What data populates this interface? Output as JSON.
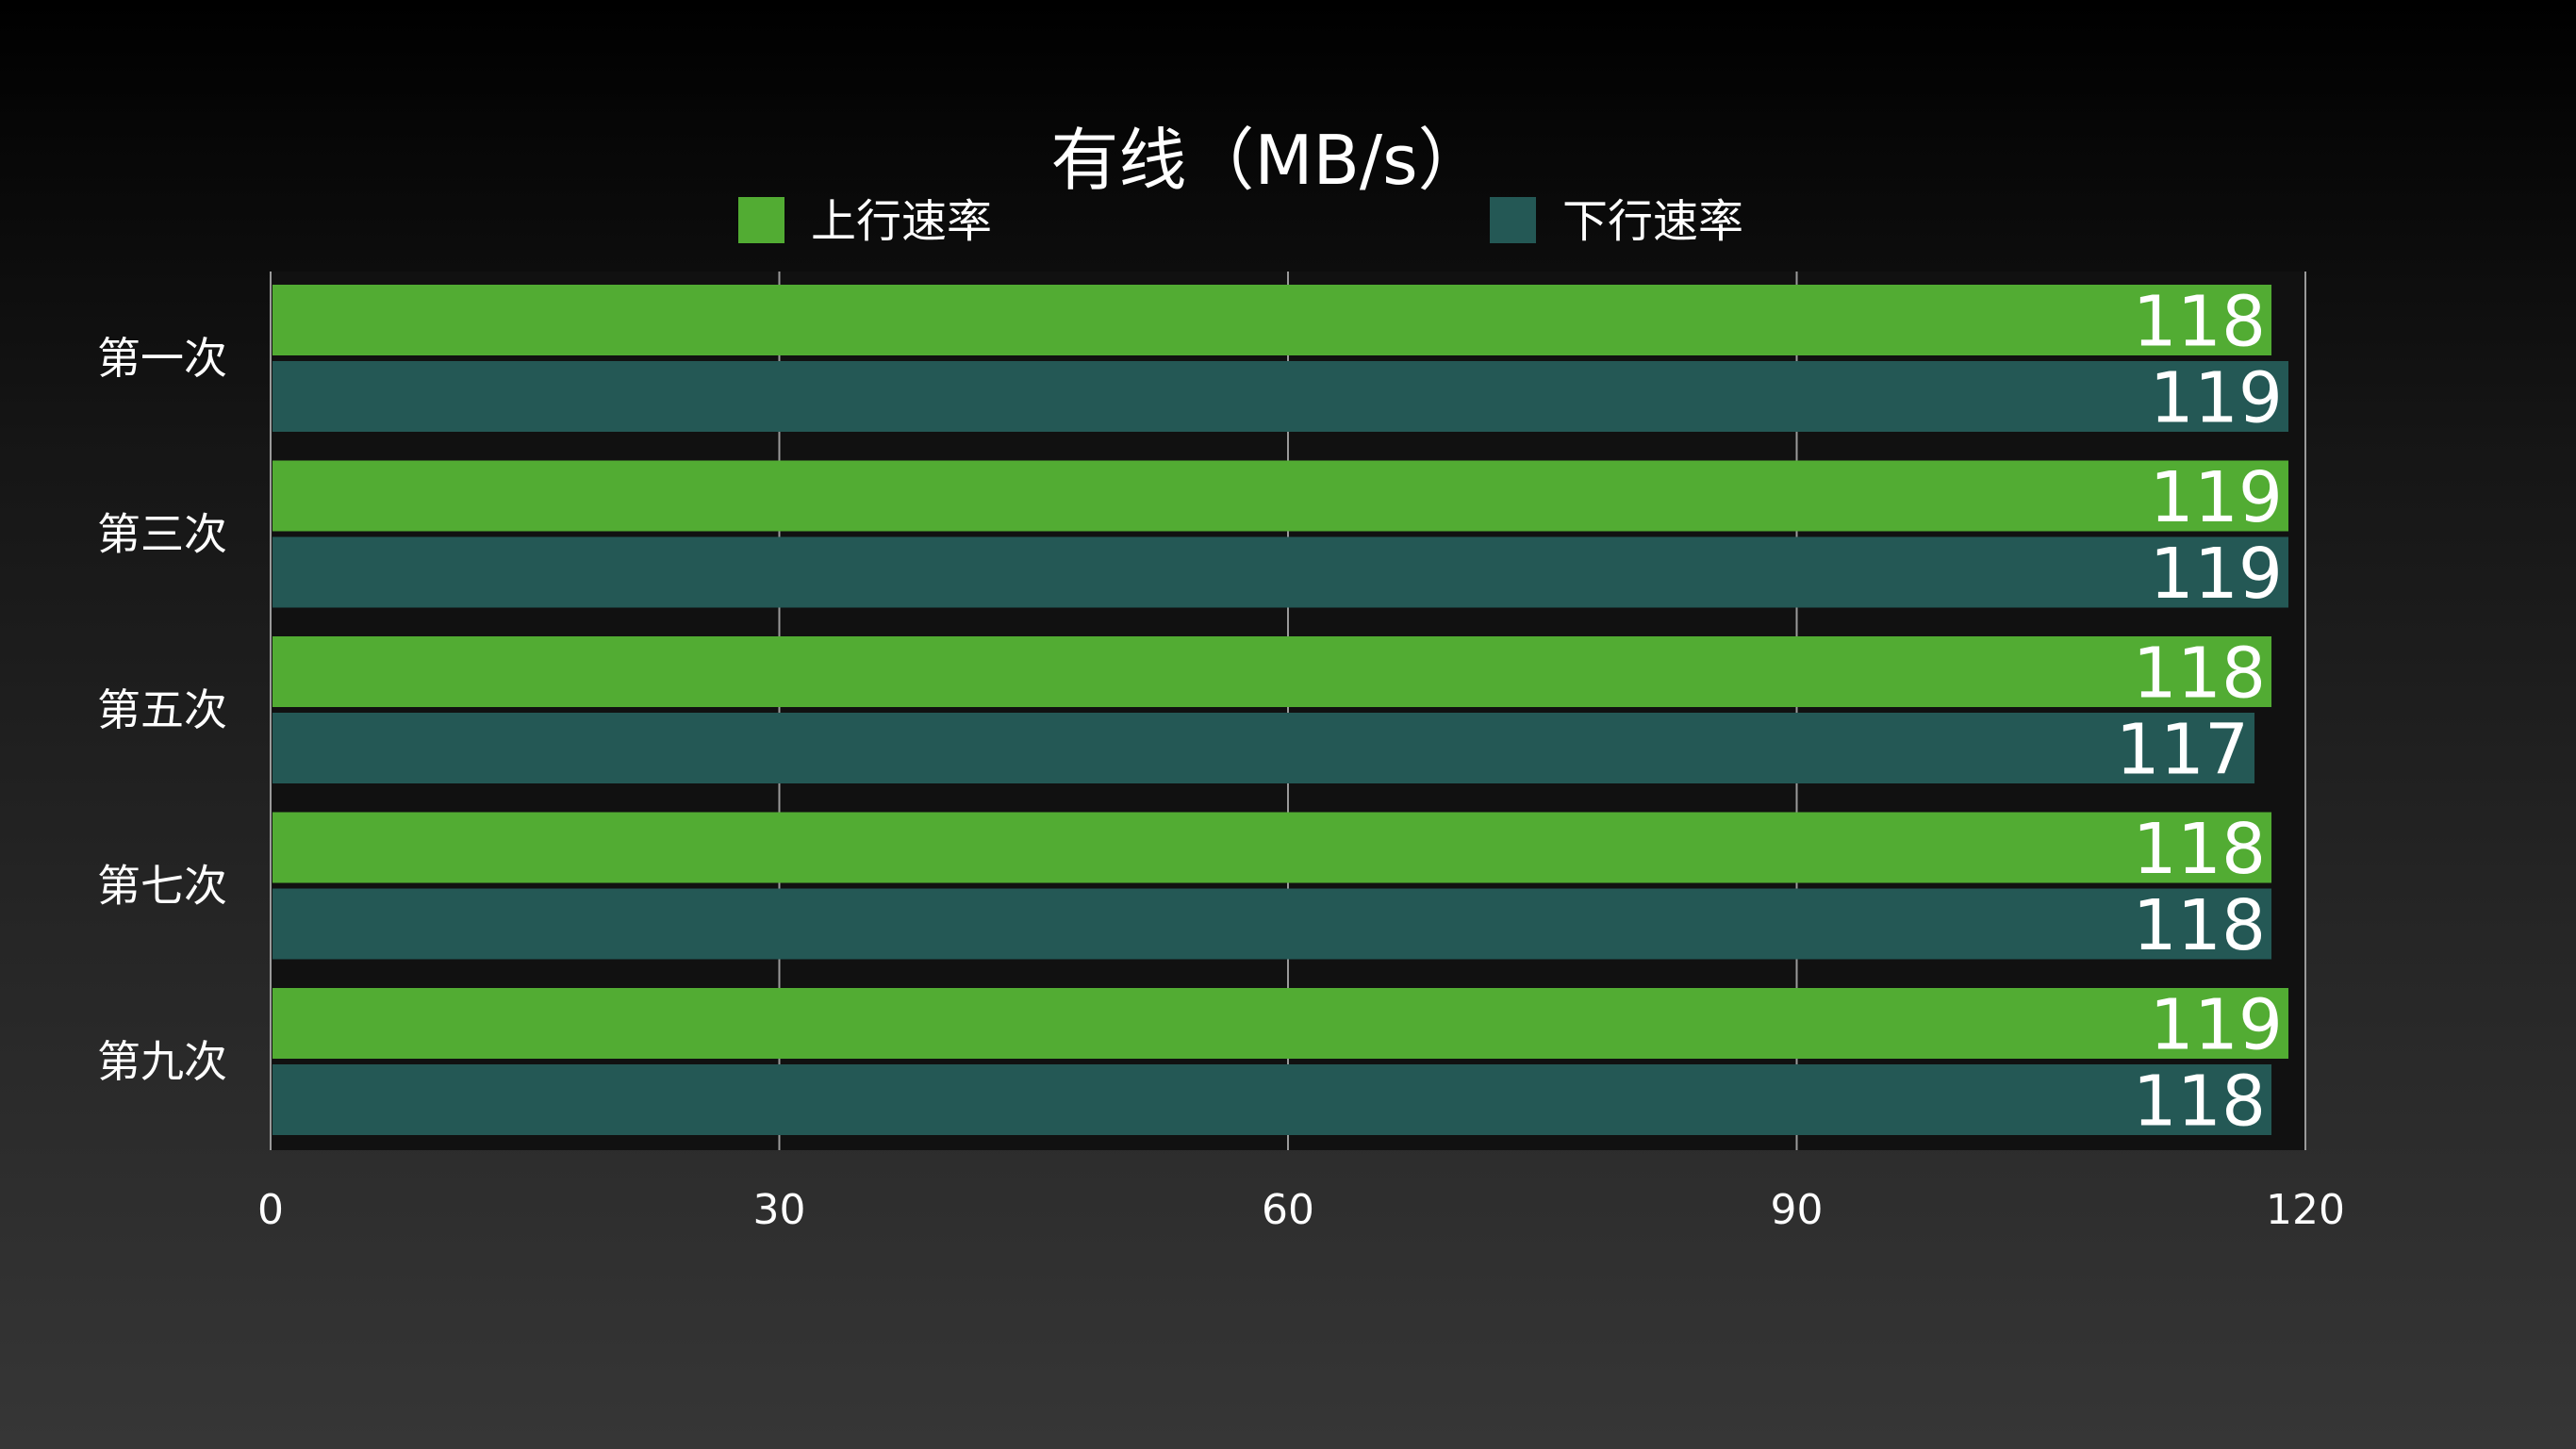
{
  "chart_data": {
    "type": "bar",
    "orientation": "horizontal",
    "title": "有线（MB/s）",
    "categories": [
      "第一次",
      "第三次",
      "第五次",
      "第七次",
      "第九次"
    ],
    "series": [
      {
        "name": "上行速率",
        "color": "#52ac33",
        "values": [
          118,
          119,
          118,
          118,
          119
        ]
      },
      {
        "name": "下行速率",
        "color": "#245855",
        "values": [
          119,
          119,
          117,
          118,
          118
        ]
      }
    ],
    "xlim": [
      0,
      120
    ],
    "x_ticks": [
      0,
      30,
      60,
      90,
      120
    ],
    "grid": true,
    "legend": "top",
    "data_labels": true,
    "plot_background": "#111111"
  }
}
